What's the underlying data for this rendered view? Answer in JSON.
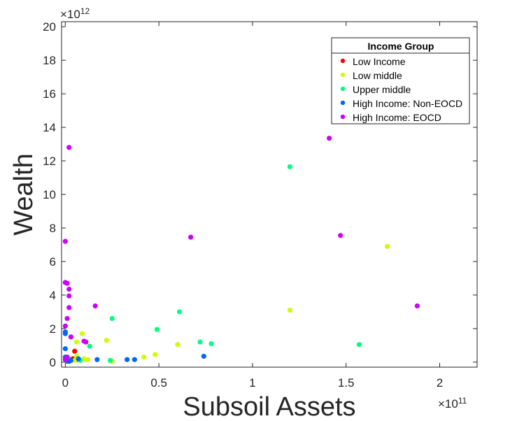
{
  "chart_data": {
    "type": "scatter",
    "xlabel": "Subsoil Assets",
    "ylabel": "Wealth",
    "x_multiplier": "×10",
    "x_exponent": "11",
    "y_multiplier": "×10",
    "y_exponent": "12",
    "xlim": [
      -0.02,
      2.2
    ],
    "ylim": [
      -0.3,
      20.3
    ],
    "x_ticks": [
      0,
      0.5,
      1,
      1.5,
      2
    ],
    "x_tick_labels": [
      "0",
      "0.5",
      "1",
      "1.5",
      "2"
    ],
    "y_ticks": [
      0,
      2,
      4,
      6,
      8,
      10,
      12,
      14,
      16,
      18,
      20
    ],
    "y_tick_labels": [
      "0",
      "2",
      "4",
      "6",
      "8",
      "10",
      "12",
      "14",
      "16",
      "18",
      "20"
    ],
    "grid": false,
    "legend_title": "Income Group",
    "legend_position": "top-right",
    "series": [
      {
        "name": "Low Income",
        "color": "#ff0000",
        "points": [
          [
            0.05,
            0.65
          ],
          [
            0.04,
            0.2
          ],
          [
            0.03,
            0.1
          ],
          [
            0.02,
            0.05
          ],
          [
            0.06,
            0.15
          ]
        ]
      },
      {
        "name": "Low middle",
        "color": "#ccff00",
        "points": [
          [
            0.01,
            0.1
          ],
          [
            0.05,
            0.1
          ],
          [
            0.06,
            0.35
          ],
          [
            0.09,
            1.7
          ],
          [
            0.06,
            1.2
          ],
          [
            0.1,
            0.2
          ],
          [
            0.12,
            0.15
          ],
          [
            0.22,
            1.3
          ],
          [
            0.25,
            0.05
          ],
          [
            0.42,
            0.3
          ],
          [
            0.48,
            0.45
          ],
          [
            0.6,
            1.05
          ],
          [
            1.2,
            3.1
          ],
          [
            1.72,
            6.9
          ]
        ]
      },
      {
        "name": "Upper middle",
        "color": "#00ff80",
        "points": [
          [
            0.02,
            0.2
          ],
          [
            0.08,
            0.1
          ],
          [
            0.13,
            0.95
          ],
          [
            0.25,
            2.6
          ],
          [
            0.24,
            0.1
          ],
          [
            0.49,
            1.95
          ],
          [
            0.61,
            3.0
          ],
          [
            0.72,
            1.2
          ],
          [
            0.78,
            1.1
          ],
          [
            1.2,
            11.65
          ],
          [
            1.57,
            1.05
          ]
        ]
      },
      {
        "name": "High Income: Non-EOCD",
        "color": "#0066ff",
        "points": [
          [
            0.0,
            1.7
          ],
          [
            0.0,
            1.8
          ],
          [
            0.0,
            0.8
          ],
          [
            0.0,
            0.3
          ],
          [
            0.01,
            0.05
          ],
          [
            0.03,
            0.1
          ],
          [
            0.07,
            0.2
          ],
          [
            0.17,
            0.15
          ],
          [
            0.33,
            0.15
          ],
          [
            0.37,
            0.15
          ],
          [
            0.74,
            0.35
          ]
        ]
      },
      {
        "name": "High Income: EOCD",
        "color": "#cc00ff",
        "points": [
          [
            0.02,
            12.8
          ],
          [
            0.0,
            7.2
          ],
          [
            0.0,
            4.75
          ],
          [
            0.01,
            4.7
          ],
          [
            0.02,
            4.35
          ],
          [
            0.02,
            3.95
          ],
          [
            0.02,
            3.25
          ],
          [
            0.01,
            2.6
          ],
          [
            0.0,
            2.15
          ],
          [
            0.03,
            1.5
          ],
          [
            0.01,
            0.3
          ],
          [
            0.0,
            0.15
          ],
          [
            0.1,
            1.25
          ],
          [
            0.11,
            1.2
          ],
          [
            0.16,
            3.35
          ],
          [
            0.67,
            7.45
          ],
          [
            1.41,
            13.35
          ],
          [
            1.47,
            7.55
          ],
          [
            1.88,
            3.35
          ]
        ]
      }
    ]
  }
}
